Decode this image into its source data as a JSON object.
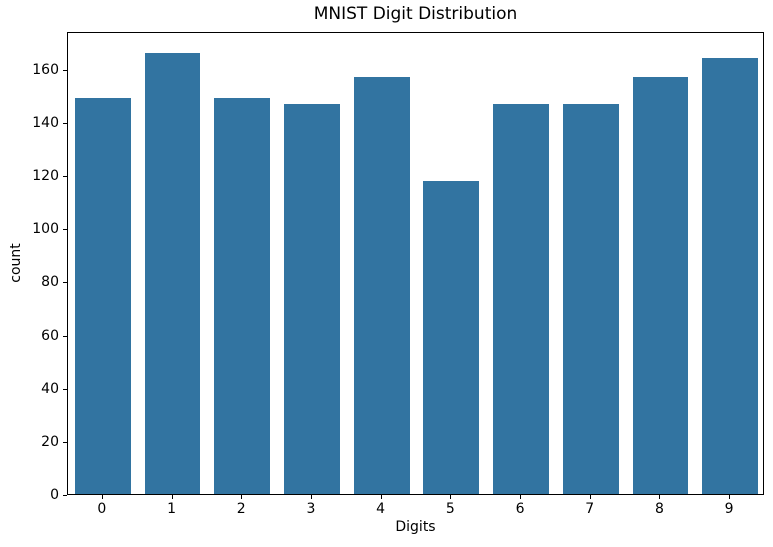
{
  "chart_data": {
    "type": "bar",
    "title": "MNIST Digit Distribution",
    "xlabel": "Digits",
    "ylabel": "count",
    "categories": [
      "0",
      "1",
      "2",
      "3",
      "4",
      "5",
      "6",
      "7",
      "8",
      "9"
    ],
    "values": [
      149,
      166,
      149,
      147,
      157,
      118,
      147,
      147,
      157,
      164
    ],
    "yticks": [
      0,
      20,
      40,
      60,
      80,
      100,
      120,
      140,
      160
    ],
    "ylim": [
      0,
      174.3
    ],
    "xlim_slots": 10,
    "bar_width_fraction": 0.8,
    "grid": false,
    "legend": null,
    "bar_color": "#3274a1",
    "spine_color": "#000000",
    "background_color": "#ffffff"
  }
}
